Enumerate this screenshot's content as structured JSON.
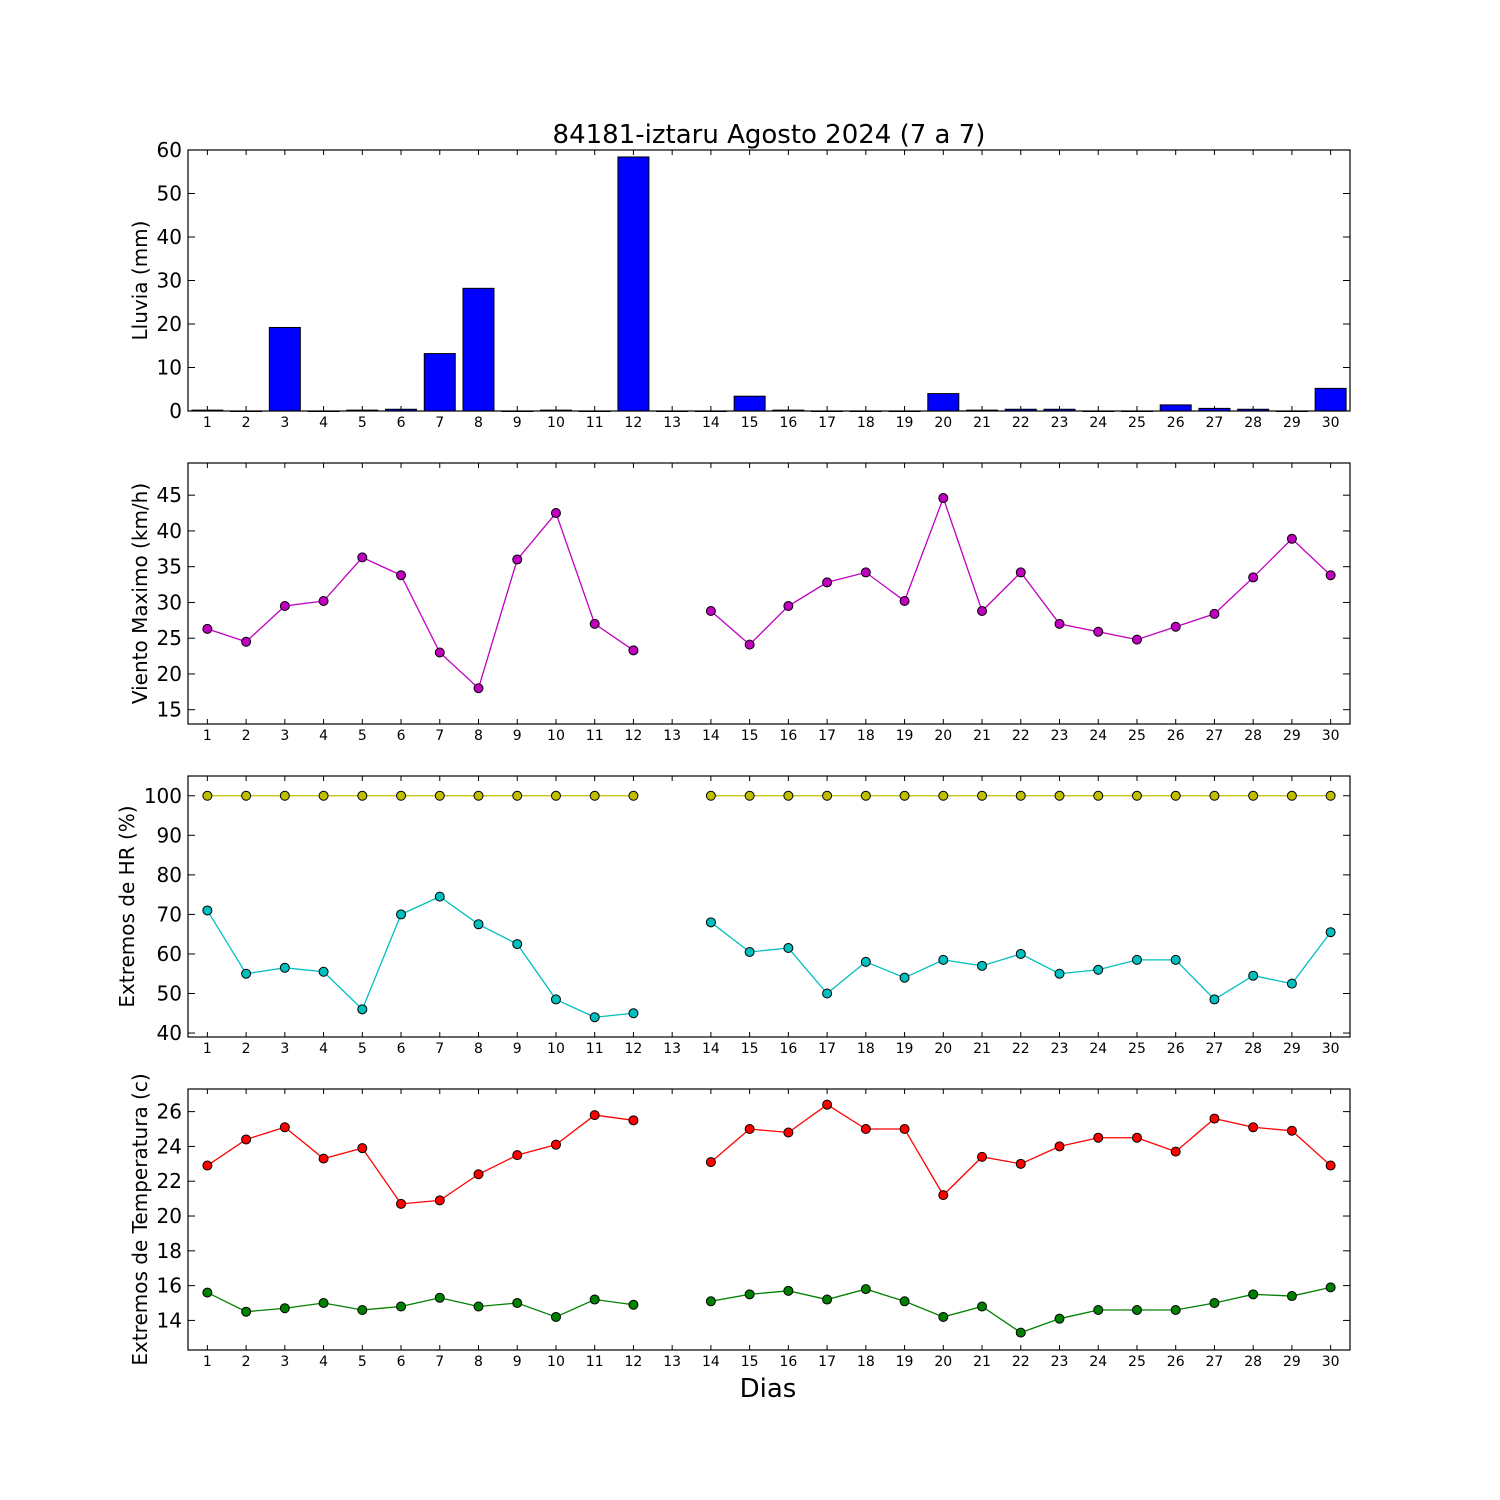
{
  "figure": {
    "title": "84181-iztaru Agosto 2024  (7 a 7)",
    "xlabel": "Dias"
  },
  "chart_data": [
    {
      "type": "bar",
      "ylabel": "Lluvia (mm)",
      "ylim": [
        0,
        60
      ],
      "yticks": [
        0,
        10,
        20,
        30,
        40,
        50,
        60
      ],
      "categories": [
        "1",
        "2",
        "3",
        "4",
        "5",
        "6",
        "7",
        "8",
        "9",
        "10",
        "11",
        "12",
        "13",
        "14",
        "15",
        "16",
        "17",
        "18",
        "19",
        "20",
        "21",
        "22",
        "23",
        "24",
        "25",
        "26",
        "27",
        "28",
        "29",
        "30"
      ],
      "series": [
        {
          "color": "#0000ff",
          "values": [
            0.2,
            0,
            19.2,
            0,
            0.2,
            0.4,
            13.2,
            28.2,
            0,
            0.2,
            0,
            58.4,
            0,
            0,
            3.4,
            0.2,
            0,
            0,
            0,
            4.0,
            0.2,
            0.4,
            0.4,
            0,
            0,
            1.4,
            0.6,
            0.4,
            0,
            5.2
          ]
        }
      ]
    },
    {
      "type": "line",
      "ylabel": "Viento Maximo (km/h)",
      "ylim": [
        13,
        49.5
      ],
      "yticks": [
        15,
        20,
        25,
        30,
        35,
        40,
        45
      ],
      "categories": [
        "1",
        "2",
        "3",
        "4",
        "5",
        "6",
        "7",
        "8",
        "9",
        "10",
        "11",
        "12",
        "13",
        "14",
        "15",
        "16",
        "17",
        "18",
        "19",
        "20",
        "21",
        "22",
        "23",
        "24",
        "25",
        "26",
        "27",
        "28",
        "29",
        "30"
      ],
      "series": [
        {
          "color": "#bf00bf",
          "values": [
            26.3,
            24.5,
            29.5,
            30.2,
            36.3,
            33.8,
            23.0,
            18.0,
            36.0,
            42.5,
            27.0,
            23.3,
            null,
            28.8,
            24.1,
            29.5,
            32.8,
            34.2,
            30.2,
            44.6,
            28.8,
            34.2,
            27.0,
            25.9,
            24.8,
            26.6,
            28.4,
            33.5,
            38.9,
            33.8
          ]
        }
      ]
    },
    {
      "type": "line",
      "ylabel": "Extremos de HR (%)",
      "ylim": [
        39,
        105
      ],
      "yticks": [
        40,
        50,
        60,
        70,
        80,
        90,
        100
      ],
      "categories": [
        "1",
        "2",
        "3",
        "4",
        "5",
        "6",
        "7",
        "8",
        "9",
        "10",
        "11",
        "12",
        "13",
        "14",
        "15",
        "16",
        "17",
        "18",
        "19",
        "20",
        "21",
        "22",
        "23",
        "24",
        "25",
        "26",
        "27",
        "28",
        "29",
        "30"
      ],
      "series": [
        {
          "color": "#bfbf00",
          "values": [
            100,
            100,
            100,
            100,
            100,
            100,
            100,
            100,
            100,
            100,
            100,
            100,
            null,
            100,
            100,
            100,
            100,
            100,
            100,
            100,
            100,
            100,
            100,
            100,
            100,
            100,
            100,
            100,
            100,
            100
          ]
        },
        {
          "color": "#00bfbf",
          "values": [
            71,
            55,
            56.5,
            55.5,
            46,
            70,
            74.5,
            67.5,
            62.5,
            48.5,
            44,
            45,
            null,
            68,
            60.5,
            61.5,
            50,
            58,
            54,
            58.5,
            57,
            60,
            55,
            56,
            58.5,
            58.5,
            48.5,
            54.5,
            52.5,
            65.5
          ]
        }
      ]
    },
    {
      "type": "line",
      "ylabel": "Extremos de Temperatura (c)",
      "ylim": [
        12.3,
        27.3
      ],
      "yticks": [
        14,
        16,
        18,
        20,
        22,
        24,
        26
      ],
      "categories": [
        "1",
        "2",
        "3",
        "4",
        "5",
        "6",
        "7",
        "8",
        "9",
        "10",
        "11",
        "12",
        "13",
        "14",
        "15",
        "16",
        "17",
        "18",
        "19",
        "20",
        "21",
        "22",
        "23",
        "24",
        "25",
        "26",
        "27",
        "28",
        "29",
        "30"
      ],
      "series": [
        {
          "color": "#ff0000",
          "values": [
            22.9,
            24.4,
            25.1,
            23.3,
            23.9,
            20.7,
            20.9,
            22.4,
            23.5,
            24.1,
            25.8,
            25.5,
            null,
            23.1,
            25.0,
            24.8,
            26.4,
            25.0,
            25.0,
            21.2,
            23.4,
            23.0,
            24.0,
            24.5,
            24.5,
            23.7,
            25.6,
            25.1,
            24.9,
            22.9
          ]
        },
        {
          "color": "#008000",
          "values": [
            15.6,
            14.5,
            14.7,
            15.0,
            14.6,
            14.8,
            15.3,
            14.8,
            15.0,
            14.2,
            15.2,
            14.9,
            null,
            15.1,
            15.5,
            15.7,
            15.2,
            15.8,
            15.1,
            14.2,
            14.8,
            13.3,
            14.1,
            14.6,
            14.6,
            14.6,
            15.0,
            15.5,
            15.4,
            15.9
          ]
        }
      ]
    }
  ]
}
